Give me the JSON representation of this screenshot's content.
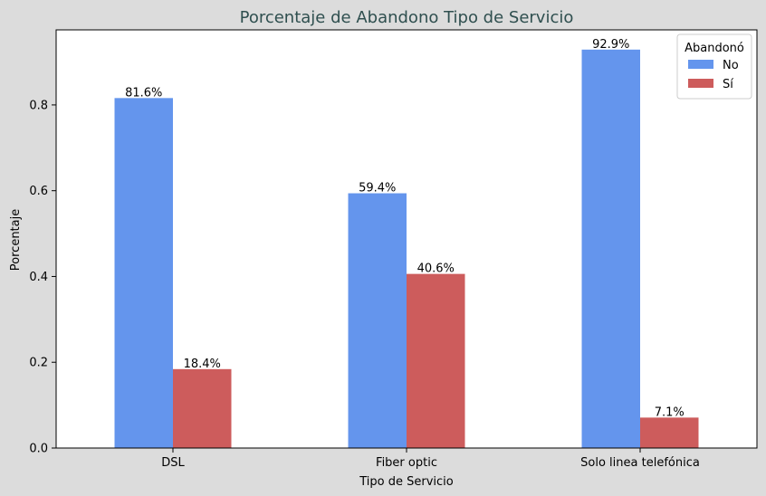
{
  "chart_data": {
    "type": "bar",
    "title": "Porcentaje de Abandono Tipo de Servicio",
    "xlabel": "Tipo de Servicio",
    "ylabel": "Porcentaje",
    "categories": [
      "DSL",
      "Fiber optic",
      "Solo linea telefónica"
    ],
    "series": [
      {
        "name": "No",
        "color": "#6495ed",
        "values": [
          0.816,
          0.594,
          0.929
        ],
        "labels": [
          "81.6%",
          "59.4%",
          "92.9%"
        ]
      },
      {
        "name": "Sí",
        "color": "#cd5c5c",
        "values": [
          0.184,
          0.406,
          0.071
        ],
        "labels": [
          "18.4%",
          "40.6%",
          "7.1%"
        ]
      }
    ],
    "ylim": [
      0,
      0.975
    ],
    "yticks": [
      0.0,
      0.2,
      0.4,
      0.6,
      0.8
    ],
    "ytick_labels": [
      "0.0",
      "0.2",
      "0.4",
      "0.6",
      "0.8"
    ],
    "grid": false,
    "legend": {
      "title": "Abandonó",
      "position": "top-right"
    },
    "background": "#dcdcdc",
    "plot_background": "#ffffff",
    "title_color": "#2f4f4f"
  }
}
